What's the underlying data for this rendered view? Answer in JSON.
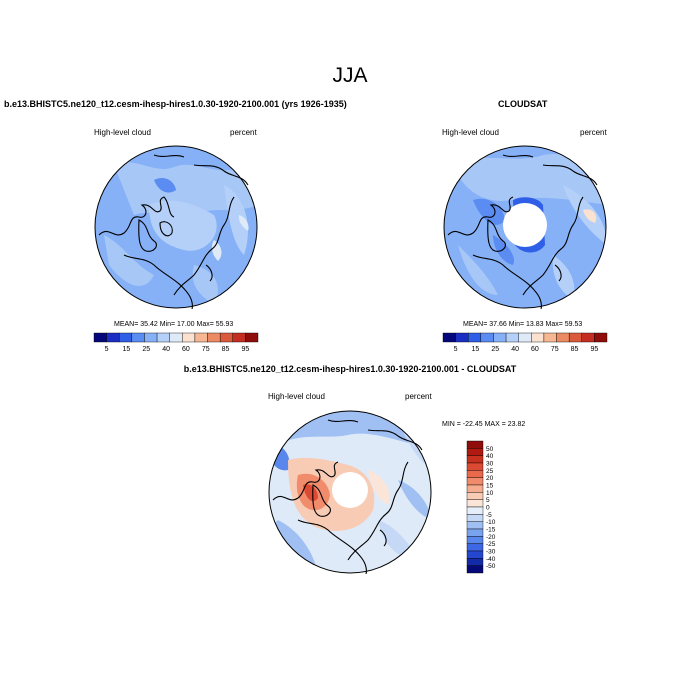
{
  "title": "JJA",
  "panels": {
    "left": {
      "title": "b.e13.BHISTC5.ne120_t12.cesm-ihesp-hires1.0.30-1920-2100.001 (yrs 1926-1935)",
      "field_label": "High-level cloud",
      "units_label": "percent",
      "stats": "MEAN= 35.42 Min= 17.00 Max= 55.93"
    },
    "right": {
      "title": "CLOUDSAT",
      "field_label": "High-level cloud",
      "units_label": "percent",
      "stats": "MEAN= 37.66 Min= 13.83 Max= 59.53"
    },
    "diff": {
      "title": "b.e13.BHISTC5.ne120_t12.cesm-ihesp-hires1.0.30-1920-2100.001 - CLOUDSAT",
      "field_label": "High-level cloud",
      "units_label": "percent",
      "stats": "MIN = -22.45 MAX = 23.82"
    }
  },
  "colorbar_abs": {
    "labels": [
      "5",
      "15",
      "25",
      "40",
      "60",
      "75",
      "85",
      "95"
    ],
    "colors": [
      "#05087a",
      "#1a2ec4",
      "#2f5fe6",
      "#5a8cf2",
      "#86b1f7",
      "#b4d0f9",
      "#dfeaf9",
      "#fbe1cf",
      "#f6b792",
      "#ec8a63",
      "#dc5a3c",
      "#c42e22",
      "#8f0d0b"
    ]
  },
  "colorbar_diff": {
    "labels": [
      "50",
      "40",
      "30",
      "25",
      "20",
      "15",
      "10",
      "5",
      "0",
      "-5",
      "-10",
      "-15",
      "-20",
      "-25",
      "-30",
      "-40",
      "-50"
    ],
    "colors": [
      "#8f0d0b",
      "#b01a10",
      "#c8301f",
      "#dc4a33",
      "#e9694c",
      "#f08b6c",
      "#f5ac8f",
      "#f8cbb5",
      "#fbe5d8",
      "#e6eef9",
      "#c5d8f6",
      "#a0c0f3",
      "#7aa3ef",
      "#5a87ec",
      "#3d67e4",
      "#2547cf",
      "#132aa8",
      "#060a78"
    ]
  }
}
